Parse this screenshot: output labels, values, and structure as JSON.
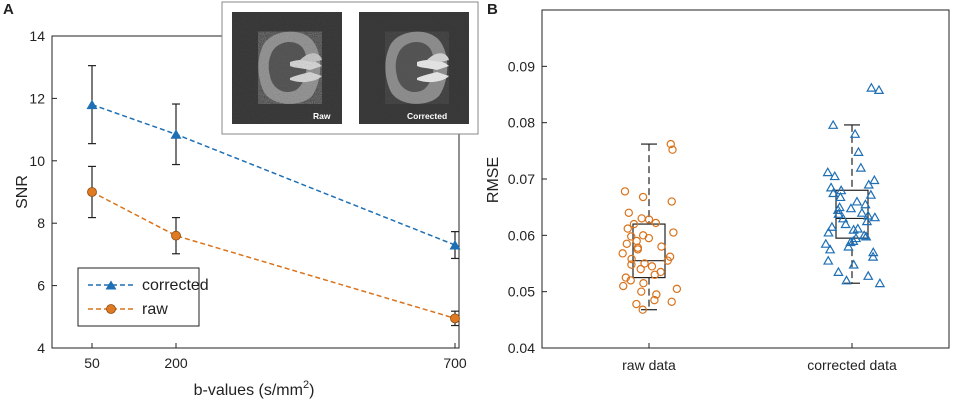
{
  "panels": {
    "a": "A",
    "b": "B"
  },
  "colors": {
    "corrected": "#1f6fb4",
    "raw": "#d9731c",
    "axis": "#222222"
  },
  "chart_data": [
    {
      "type": "line",
      "title": "",
      "xlabel_prefix": "b-values (s/mm",
      "xlabel_sup": "2",
      "xlabel_suffix": ")",
      "ylabel": "SNR",
      "x": [
        50,
        200,
        700
      ],
      "x_ticks": [
        "50",
        "200",
        "700"
      ],
      "y_ticks": [
        "4",
        "6",
        "8",
        "10",
        "12",
        "14"
      ],
      "ylim": [
        4,
        14
      ],
      "series": [
        {
          "name": "corrected",
          "marker": "triangle",
          "values": [
            11.8,
            10.85,
            7.3
          ],
          "errors": [
            1.25,
            0.97,
            0.43
          ]
        },
        {
          "name": "raw",
          "marker": "circle",
          "values": [
            9.0,
            7.6,
            4.95
          ],
          "errors": [
            0.82,
            0.58,
            0.23
          ]
        }
      ],
      "legend": [
        "corrected",
        "raw"
      ],
      "inset": {
        "labels": [
          "Raw",
          "Corrected"
        ]
      }
    },
    {
      "type": "box",
      "title": "",
      "xlabel": "",
      "ylabel": "RMSE",
      "categories": [
        "raw data",
        "corrected data"
      ],
      "y_ticks": [
        "0.04",
        "0.05",
        "0.06",
        "0.07",
        "0.08",
        "0.09"
      ],
      "ylim": [
        0.04,
        0.1
      ],
      "boxes": [
        {
          "name": "raw data",
          "whisker_low": 0.0468,
          "q1": 0.0525,
          "median": 0.0555,
          "q3": 0.062,
          "whisker_high": 0.0762,
          "points": [
            0.0762,
            0.0752,
            0.0678,
            0.0668,
            0.066,
            0.064,
            0.063,
            0.0628,
            0.0622,
            0.062,
            0.0612,
            0.0605,
            0.06,
            0.0598,
            0.0595,
            0.059,
            0.0585,
            0.058,
            0.0578,
            0.0575,
            0.0568,
            0.0562,
            0.0558,
            0.0555,
            0.055,
            0.0548,
            0.0545,
            0.054,
            0.0535,
            0.053,
            0.0525,
            0.052,
            0.0515,
            0.051,
            0.0505,
            0.05,
            0.0495,
            0.0485,
            0.0482,
            0.0478,
            0.0468
          ]
        },
        {
          "name": "corrected data",
          "whisker_low": 0.0515,
          "q1": 0.0595,
          "median": 0.063,
          "q3": 0.068,
          "whisker_high": 0.0796,
          "points": [
            0.0862,
            0.0858,
            0.0796,
            0.078,
            0.0748,
            0.072,
            0.0712,
            0.0705,
            0.0698,
            0.069,
            0.0685,
            0.068,
            0.0675,
            0.0672,
            0.0668,
            0.066,
            0.0655,
            0.065,
            0.0648,
            0.0645,
            0.064,
            0.0638,
            0.0635,
            0.0632,
            0.063,
            0.0625,
            0.062,
            0.0615,
            0.0612,
            0.061,
            0.0605,
            0.06,
            0.0598,
            0.0595,
            0.059,
            0.0588,
            0.0585,
            0.058,
            0.0575,
            0.057,
            0.0562,
            0.0555,
            0.0548,
            0.0535,
            0.0528,
            0.052,
            0.0515
          ]
        }
      ]
    }
  ]
}
